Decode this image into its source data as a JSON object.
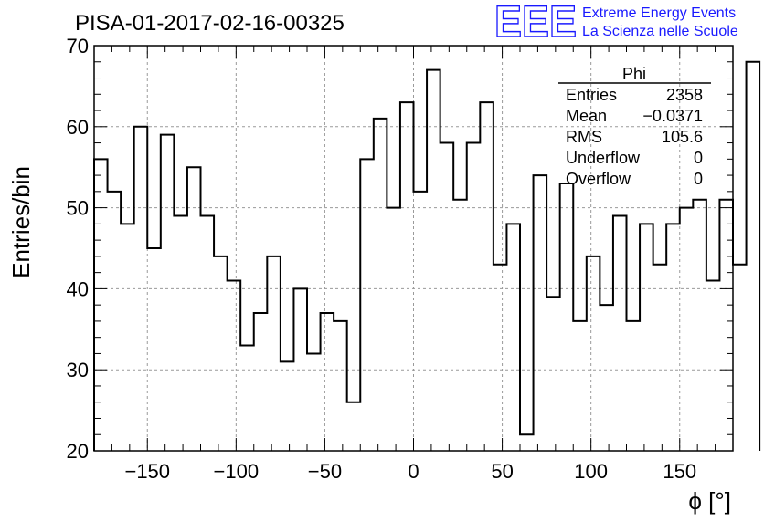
{
  "chart_data": {
    "type": "bar",
    "title": "PISA-01-2017-02-16-00325",
    "xlabel": "ϕ [°]",
    "ylabel": "Entries/bin",
    "xlim": [
      -180,
      180
    ],
    "ylim": [
      20,
      70
    ],
    "x_ticks": [
      -150,
      -100,
      -50,
      0,
      50,
      100,
      150
    ],
    "y_ticks": [
      20,
      30,
      40,
      50,
      60,
      70
    ],
    "bin_edges_start": -180,
    "bin_width": 7.5,
    "values": [
      56,
      52,
      48,
      60,
      45,
      59,
      49,
      55,
      49,
      44,
      41,
      33,
      37,
      44,
      31,
      40,
      32,
      37,
      36,
      26,
      56,
      61,
      50,
      63,
      52,
      67,
      58,
      51,
      58,
      63,
      43,
      48,
      22,
      54,
      39,
      53,
      36,
      44,
      38,
      49,
      36,
      48,
      43,
      48,
      50,
      51,
      41,
      51,
      43,
      68
    ],
    "grid": true,
    "stats_box": {
      "title": "Phi",
      "rows": [
        {
          "label": "Entries",
          "value": "2358"
        },
        {
          "label": "Mean",
          "value": "−0.0371"
        },
        {
          "label": "RMS",
          "value": "105.6"
        },
        {
          "label": "Underflow",
          "value": "0"
        },
        {
          "label": "Overflow",
          "value": "0"
        }
      ]
    }
  },
  "logo": {
    "letters": "EEE",
    "line1": "Extreme Energy Events",
    "line2": "La Scienza nelle Scuole",
    "color": "#1a1aff"
  }
}
